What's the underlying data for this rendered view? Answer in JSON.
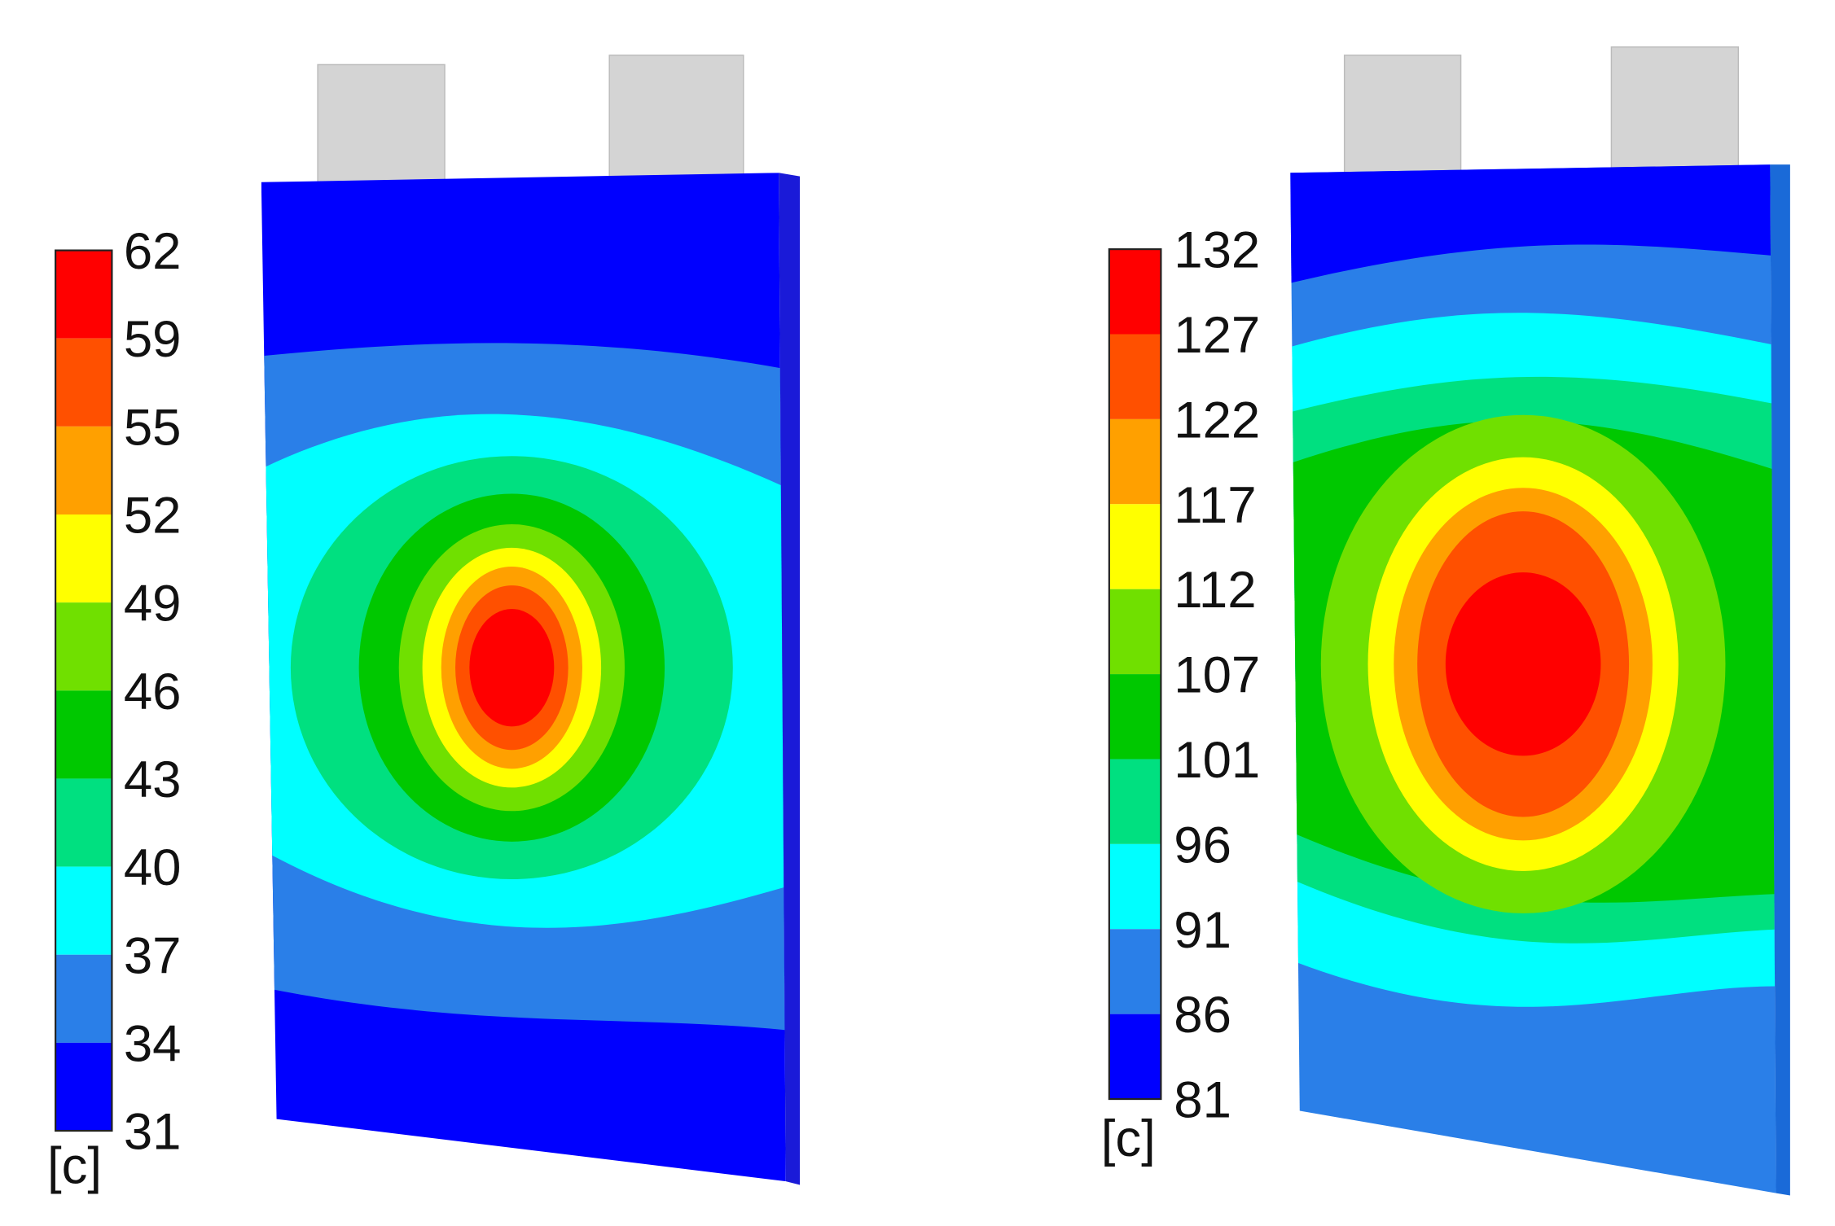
{
  "panels": [
    {
      "colorbar": {
        "unit": "[c]",
        "ticks": [
          62,
          59,
          55,
          52,
          49,
          46,
          43,
          40,
          37,
          34,
          31
        ],
        "colors": [
          "#ff0000",
          "#ff5000",
          "#ffa000",
          "#ffff00",
          "#70e000",
          "#00c800",
          "#00e080",
          "#00ffff",
          "#2a7fe8",
          "#0000ff"
        ]
      }
    },
    {
      "colorbar": {
        "unit": "[c]",
        "ticks": [
          132,
          127,
          122,
          117,
          112,
          107,
          101,
          96,
          91,
          86,
          81
        ],
        "colors": [
          "#ff0000",
          "#ff5000",
          "#ffa000",
          "#ffff00",
          "#70e000",
          "#00c800",
          "#00e080",
          "#00ffff",
          "#2a7fe8",
          "#0000ff"
        ]
      }
    }
  ]
}
